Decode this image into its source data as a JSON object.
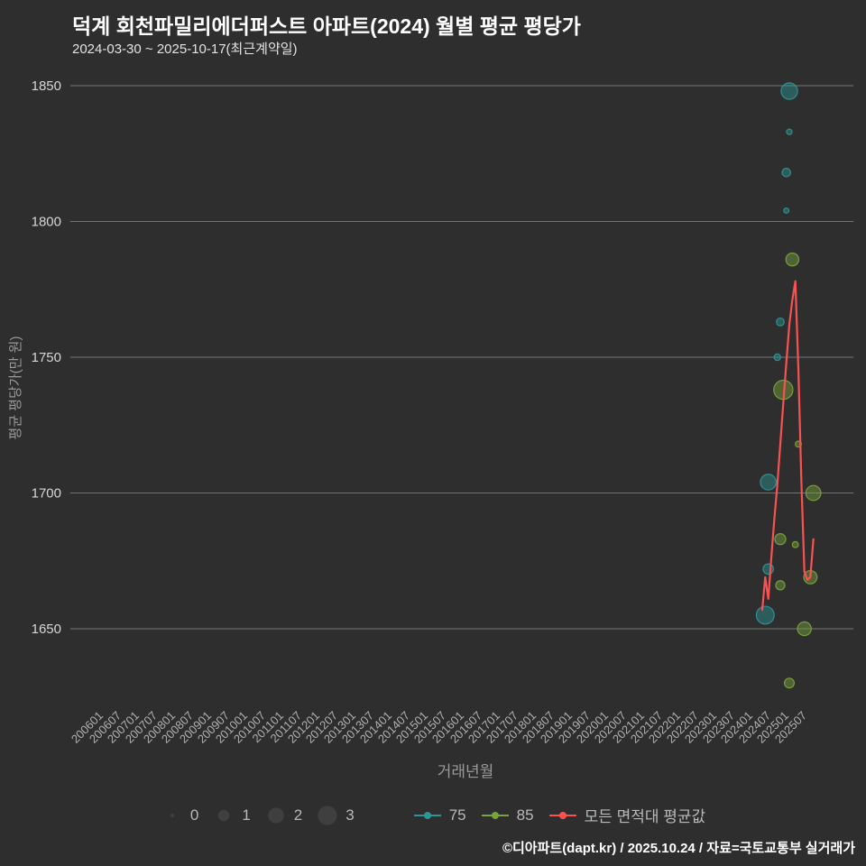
{
  "header": {
    "title": "덕계 회천파밀리에더퍼스트 아파트(2024) 월별 평균 평당가",
    "subtitle": "2024-03-30 ~ 2025-10-17(최근계약일)"
  },
  "axes": {
    "y_label": "평균 평당가(만 원)",
    "x_label": "거래년월"
  },
  "legend": {
    "sizes": [
      0,
      1,
      2,
      3
    ],
    "series": [
      {
        "label": "75",
        "color": "#2d9596"
      },
      {
        "label": "85",
        "color": "#79a33d"
      },
      {
        "label": "모든 면적대 평균값",
        "color": "#fa5252"
      }
    ],
    "size_marker_color": "#3f3f3f"
  },
  "chart_data": {
    "type": "scatter",
    "title": "덕계 회천파밀리에더퍼스트 아파트(2024) 월별 평균 평당가",
    "subtitle": "2024-03-30 ~ 2025-10-17(최근계약일)",
    "xlabel": "거래년월",
    "ylabel": "평균 평당가(만 원)",
    "ylim": [
      1620,
      1860
    ],
    "grid": true,
    "legend_position": "bottom",
    "y_ticks": [
      1850,
      1800,
      1750,
      1700,
      1650
    ],
    "x_ticks": [
      "200601",
      "200607",
      "200701",
      "200707",
      "200801",
      "200807",
      "200901",
      "200907",
      "201001",
      "201007",
      "201101",
      "201107",
      "201201",
      "201207",
      "201301",
      "201307",
      "201401",
      "201407",
      "201501",
      "201507",
      "201601",
      "201607",
      "201701",
      "201707",
      "201801",
      "201807",
      "201901",
      "201907",
      "202001",
      "202007",
      "202101",
      "202107",
      "202201",
      "202207",
      "202301",
      "202307",
      "202401",
      "202407",
      "202501",
      "202507"
    ],
    "series": [
      {
        "name": "75",
        "type": "bubble",
        "color": "#2d9596",
        "points": [
          {
            "ym": "202405",
            "value": 1655,
            "size": 2.6
          },
          {
            "ym": "202406",
            "value": 1672,
            "size": 0.8
          },
          {
            "ym": "202406",
            "value": 1704,
            "size": 2.0
          },
          {
            "ym": "202409",
            "value": 1750,
            "size": 0.25
          },
          {
            "ym": "202410",
            "value": 1763,
            "size": 0.4
          },
          {
            "ym": "202412",
            "value": 1804,
            "size": 0.12
          },
          {
            "ym": "202412",
            "value": 1818,
            "size": 0.5
          },
          {
            "ym": "202501",
            "value": 1833,
            "size": 0.15
          },
          {
            "ym": "202501",
            "value": 1848,
            "size": 2.2
          }
        ]
      },
      {
        "name": "85",
        "type": "bubble",
        "color": "#79a33d",
        "points": [
          {
            "ym": "202501",
            "value": 1630,
            "size": 0.7
          },
          {
            "ym": "202506",
            "value": 1650,
            "size": 1.5
          },
          {
            "ym": "202410",
            "value": 1666,
            "size": 0.6
          },
          {
            "ym": "202508",
            "value": 1669,
            "size": 1.4
          },
          {
            "ym": "202503",
            "value": 1681,
            "size": 0.2
          },
          {
            "ym": "202410",
            "value": 1683,
            "size": 0.9
          },
          {
            "ym": "202509",
            "value": 1700,
            "size": 1.8
          },
          {
            "ym": "202504",
            "value": 1718,
            "size": 0.2
          },
          {
            "ym": "202411",
            "value": 1738,
            "size": 3.0
          },
          {
            "ym": "202502",
            "value": 1786,
            "size": 1.3
          }
        ]
      },
      {
        "name": "모든 면적대 평균값",
        "type": "line",
        "color": "#fa5252",
        "points": [
          {
            "ym": "202404",
            "value": 1657
          },
          {
            "ym": "202405",
            "value": 1669
          },
          {
            "ym": "202406",
            "value": 1661
          },
          {
            "ym": "202407",
            "value": 1676
          },
          {
            "ym": "202408",
            "value": 1690
          },
          {
            "ym": "202409",
            "value": 1703
          },
          {
            "ym": "202410",
            "value": 1718
          },
          {
            "ym": "202411",
            "value": 1733
          },
          {
            "ym": "202412",
            "value": 1748
          },
          {
            "ym": "202501",
            "value": 1762
          },
          {
            "ym": "202502",
            "value": 1771
          },
          {
            "ym": "202503",
            "value": 1778
          },
          {
            "ym": "202504",
            "value": 1746
          },
          {
            "ym": "202505",
            "value": 1705
          },
          {
            "ym": "202506",
            "value": 1671
          },
          {
            "ym": "202507",
            "value": 1668
          },
          {
            "ym": "202508",
            "value": 1669
          },
          {
            "ym": "202509",
            "value": 1683
          }
        ]
      }
    ]
  },
  "footer": {
    "credit": "©디아파트(dapt.kr) / 2025.10.24 / 자료=국토교통부 실거래가"
  }
}
